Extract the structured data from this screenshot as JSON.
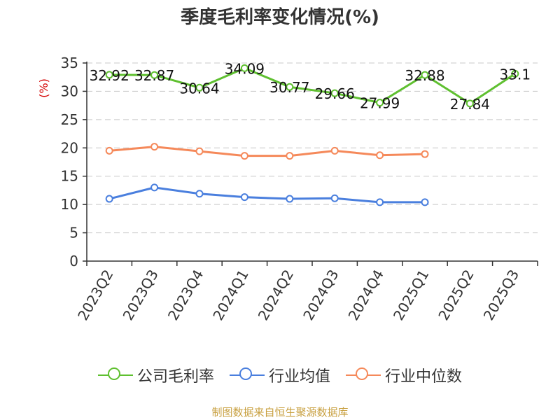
{
  "chart_data": {
    "type": "line",
    "title": "季度毛利率变化情况(%)",
    "ylabel": "(%)",
    "xlabel": "",
    "ylim": [
      0,
      35
    ],
    "yticks": [
      0,
      5,
      10,
      15,
      20,
      25,
      30,
      35
    ],
    "grid": "horizontal dashed",
    "legend_position": "bottom",
    "categories": [
      "2023Q2",
      "2023Q3",
      "2023Q4",
      "2024Q1",
      "2024Q2",
      "2024Q3",
      "2024Q4",
      "2025Q1",
      "2025Q2",
      "2025Q3"
    ],
    "series": [
      {
        "name": "公司毛利率",
        "color": "#5fc030",
        "values": [
          32.92,
          32.87,
          30.64,
          34.09,
          30.77,
          29.66,
          27.99,
          32.88,
          27.84,
          33.1
        ],
        "labels": [
          "32.92",
          "32.87",
          "30.64",
          "34.09",
          "30.77",
          "29.66",
          "27.99",
          "32.88",
          "27.84",
          "33.1"
        ]
      },
      {
        "name": "行业均值",
        "color": "#4a7fde",
        "values": [
          11.0,
          13.0,
          11.9,
          11.3,
          11.0,
          11.1,
          10.4,
          10.4,
          null,
          null
        ]
      },
      {
        "name": "行业中位数",
        "color": "#f5895a",
        "values": [
          19.5,
          20.2,
          19.4,
          18.6,
          18.6,
          19.5,
          18.7,
          18.9,
          null,
          null
        ]
      }
    ],
    "source": "制图数据来自恒生聚源数据库"
  }
}
